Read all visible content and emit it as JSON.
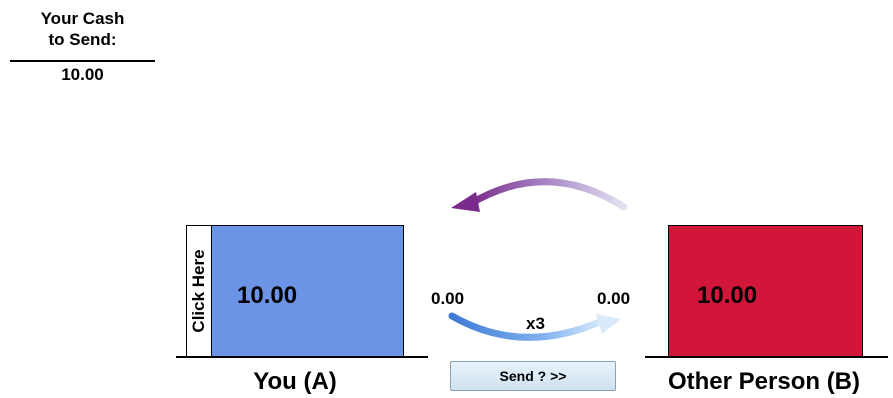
{
  "cash_panel": {
    "title_line1": "Your Cash",
    "title_line2": "to Send:",
    "value": "10.00"
  },
  "player_a": {
    "amount": "10.00",
    "click_label": "Click Here",
    "name": "You (A)",
    "color": "#6b93e6"
  },
  "player_b": {
    "amount": "10.00",
    "name": "Other Person (B)",
    "color": "#d2163a"
  },
  "transfer": {
    "sent": "0.00",
    "received": "0.00",
    "multiplier": "x3"
  },
  "send_button": {
    "label": "Send ? >>"
  },
  "arrows": {
    "top_arrow_color": "#7a2a8a",
    "bottom_arrow_color": "#3f7bd6"
  }
}
